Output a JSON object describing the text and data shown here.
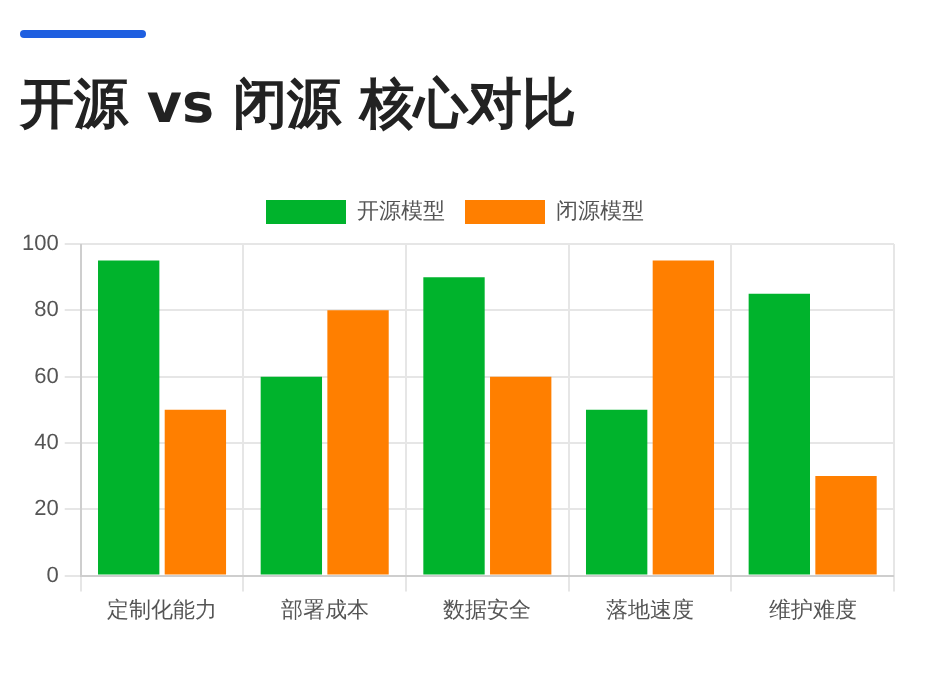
{
  "chart_data": {
    "type": "bar",
    "title": "开源 vs 闭源 核心对比",
    "categories": [
      "定制化能力",
      "部署成本",
      "数据安全",
      "落地速度",
      "维护难度"
    ],
    "series": [
      {
        "name": "开源模型",
        "color": "#00b32c",
        "values": [
          95,
          60,
          90,
          50,
          85
        ]
      },
      {
        "name": "闭源模型",
        "color": "#ff7f00",
        "values": [
          50,
          80,
          60,
          95,
          30
        ]
      }
    ],
    "ylim": [
      0,
      100
    ],
    "yticks": [
      0,
      20,
      40,
      60,
      80,
      100
    ],
    "grid": true,
    "legend": "top"
  }
}
